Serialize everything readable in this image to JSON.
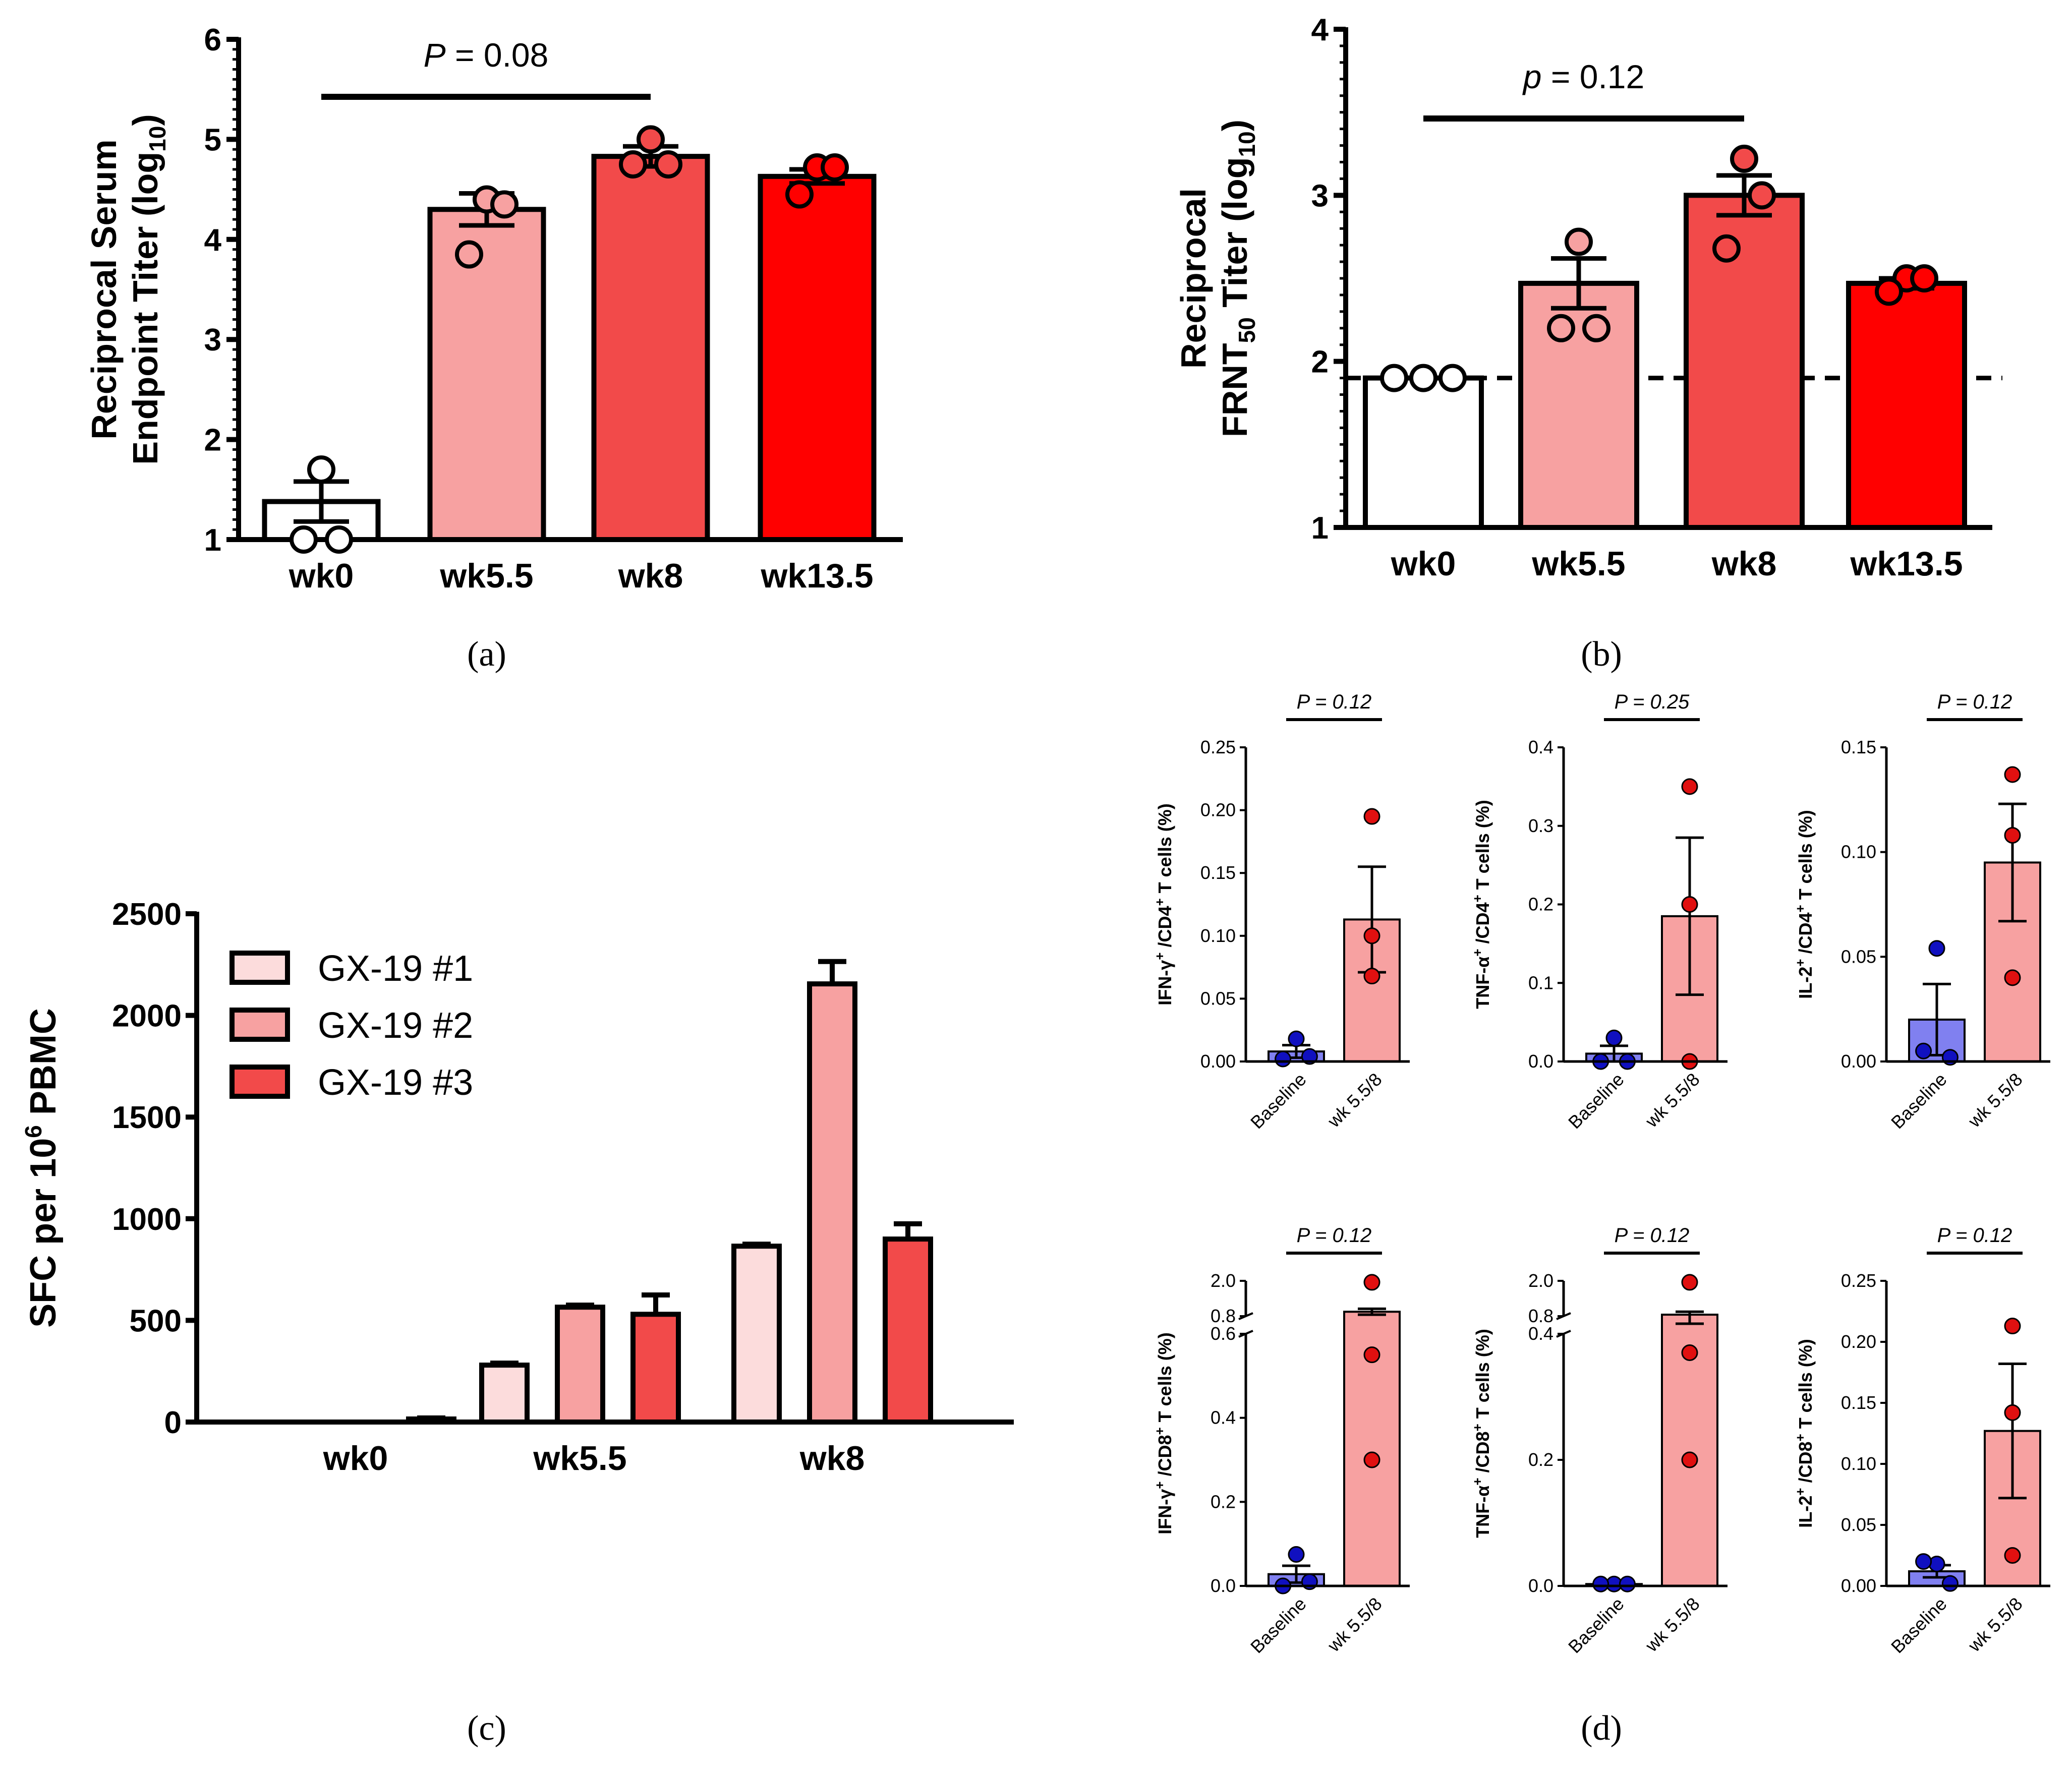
{
  "colors": {
    "white": "#ffffff",
    "pink_light": "#fcdcdc",
    "pink": "#f7a1a1",
    "red_mid": "#f24a4a",
    "red": "#ff0000",
    "blue_bar": "#8080f0",
    "blue_dot": "#1010c0",
    "dot_red": "#e01010",
    "axis": "#000000"
  },
  "chart_data": [
    {
      "id": "a",
      "caption": "(a)",
      "type": "bar",
      "ylabel_line1": "Reciprocal Serum",
      "ylabel_line2": "Endpoint Titer (log",
      "ylabel_sub": "10",
      "ylabel_end": ")",
      "ylim": [
        1,
        6
      ],
      "yticks": [
        "1",
        "2",
        "3",
        "4",
        "5",
        "6"
      ],
      "categories": [
        "wk0",
        "wk5.5",
        "wk8",
        "wk13.5"
      ],
      "values": [
        1.38,
        4.3,
        4.83,
        4.63
      ],
      "errors": [
        0.2,
        0.16,
        0.1,
        0.07
      ],
      "points": [
        [
          1.7,
          1.0,
          1.0
        ],
        [
          4.4,
          4.35,
          3.85
        ],
        [
          5.0,
          4.75,
          4.75
        ],
        [
          4.72,
          4.72,
          4.45
        ]
      ],
      "bar_colors": [
        "#ffffff",
        "#f7a1a1",
        "#f24a4a",
        "#ff0000"
      ],
      "stat": {
        "label_italic": "P",
        "label_rest": " = 0.08",
        "from": 0,
        "to": 2
      }
    },
    {
      "id": "b",
      "caption": "(b)",
      "type": "bar",
      "ylabel_line1": "Reciprocal",
      "ylabel_line2": "FRNT",
      "ylabel_sub": "50",
      "ylabel_end": " Titer (log",
      "ylabel_sub2": "10",
      "ylabel_end2": ")",
      "ylim": [
        1,
        4
      ],
      "yticks": [
        "1",
        "2",
        "3",
        "4"
      ],
      "categories": [
        "wk0",
        "wk5.5",
        "wk8",
        "wk13.5"
      ],
      "values": [
        1.9,
        2.47,
        3.0,
        2.47
      ],
      "errors": [
        0.0,
        0.15,
        0.12,
        0.03
      ],
      "points": [
        [
          1.9,
          1.9,
          1.9
        ],
        [
          2.72,
          2.2,
          2.2
        ],
        [
          3.22,
          3.0,
          2.68
        ],
        [
          2.5,
          2.5,
          2.42
        ]
      ],
      "bar_colors": [
        "#ffffff",
        "#f7a1a1",
        "#f24a4a",
        "#ff0000"
      ],
      "dashed_line": 1.9,
      "stat": {
        "label_italic": "p",
        "label_rest": " = 0.12",
        "from": 0,
        "to": 2
      }
    },
    {
      "id": "c",
      "caption": "(c)",
      "type": "bar",
      "ylabel": "SFC per 10",
      "ylabel_sup": "6",
      "ylabel_end": " PBMC",
      "ylim": [
        0,
        2500
      ],
      "yticks": [
        "0",
        "500",
        "1000",
        "1500",
        "2000",
        "2500"
      ],
      "categories": [
        "wk0",
        "wk5.5",
        "wk8"
      ],
      "series": [
        {
          "name": "GX-19 #1",
          "color": "#fcdcdc",
          "values": [
            0,
            280,
            865
          ],
          "errors": [
            0,
            10,
            10
          ]
        },
        {
          "name": "GX-19 #2",
          "color": "#f7a1a1",
          "values": [
            0,
            565,
            2155
          ],
          "errors": [
            0,
            10,
            110
          ]
        },
        {
          "name": "GX-19 #3",
          "color": "#f24a4a",
          "values": [
            15,
            530,
            900
          ],
          "errors": [
            5,
            95,
            75
          ]
        }
      ]
    },
    {
      "id": "d",
      "caption": "(d)",
      "type": "scatter",
      "xcategories": [
        "Baseline",
        "wk 5.5/8"
      ],
      "panels": [
        {
          "id": "ifng-cd4",
          "y_main": "IFN-γ",
          "y_mid": " /CD4",
          "y_tail": " T cells (%)",
          "ylim": [
            0,
            0.25
          ],
          "yticks": [
            "0.00",
            "0.05",
            "0.10",
            "0.15",
            "0.20",
            "0.25"
          ],
          "values": [
            0.008,
            0.113
          ],
          "errors": [
            0.005,
            0.042
          ],
          "points": [
            [
              0.018,
              0.002,
              0.004
            ],
            [
              0.195,
              0.1,
              0.068
            ]
          ],
          "stat_label": "P = 0.12"
        },
        {
          "id": "tnfa-cd4",
          "y_main": "TNF-α",
          "y_mid": " /CD4",
          "y_tail": " T cells (%)",
          "ylim": [
            0,
            0.4
          ],
          "yticks": [
            "0.0",
            "0.1",
            "0.2",
            "0.3",
            "0.4"
          ],
          "values": [
            0.01,
            0.185
          ],
          "errors": [
            0.01,
            0.1
          ],
          "points": [
            [
              0.03,
              0.0,
              0.0
            ],
            [
              0.35,
              0.2,
              0.0
            ]
          ],
          "stat_label": "P = 0.25"
        },
        {
          "id": "il2-cd4",
          "y_main": "IL-2",
          "y_mid": " /CD4",
          "y_tail": " T cells (%)",
          "ylim": [
            0,
            0.15
          ],
          "yticks": [
            "0.00",
            "0.05",
            "0.10",
            "0.15"
          ],
          "values": [
            0.02,
            0.095
          ],
          "errors": [
            0.017,
            0.028
          ],
          "points": [
            [
              0.054,
              0.005,
              0.002
            ],
            [
              0.137,
              0.108,
              0.04
            ]
          ],
          "stat_label": "P = 0.12"
        },
        {
          "id": "ifng-cd8",
          "y_main": "IFN-γ",
          "y_mid": " /CD8",
          "y_tail": " T cells (%)",
          "broken": true,
          "yticks_low": [
            "0.0",
            "0.2",
            "0.4",
            "0.6"
          ],
          "yticks_high": [
            "0.8",
            "2.0"
          ],
          "values": [
            0.028,
            0.95
          ],
          "errors": [
            0.02,
            0.1
          ],
          "points": [
            [
              0.075,
              0.0,
              0.01
            ],
            [
              1.95,
              0.55,
              0.3
            ]
          ],
          "stat_label": "P = 0.12"
        },
        {
          "id": "tnfa-cd8",
          "y_main": "TNF-α",
          "y_mid": " /CD8",
          "y_tail": " T cells (%)",
          "broken": true,
          "yticks_low": [
            "0.0",
            "0.2",
            "0.4"
          ],
          "yticks_high": [
            "0.8",
            "2.0"
          ],
          "values": [
            0.003,
            0.85
          ],
          "errors": [
            0.002,
            0.1
          ],
          "points": [
            [
              0.003,
              0.003,
              0.003
            ],
            [
              1.95,
              0.37,
              0.2
            ]
          ],
          "stat_label": "P = 0.12"
        },
        {
          "id": "il2-cd8",
          "y_main": "IL-2",
          "y_mid": " /CD8",
          "y_tail": " T cells (%)",
          "ylim": [
            0,
            0.25
          ],
          "yticks": [
            "0.00",
            "0.05",
            "0.10",
            "0.15",
            "0.20",
            "0.25"
          ],
          "values": [
            0.012,
            0.127
          ],
          "errors": [
            0.005,
            0.055
          ],
          "points": [
            [
              0.018,
              0.02,
              0.002
            ],
            [
              0.213,
              0.142,
              0.025
            ]
          ],
          "stat_label": "P = 0.12"
        }
      ]
    }
  ]
}
